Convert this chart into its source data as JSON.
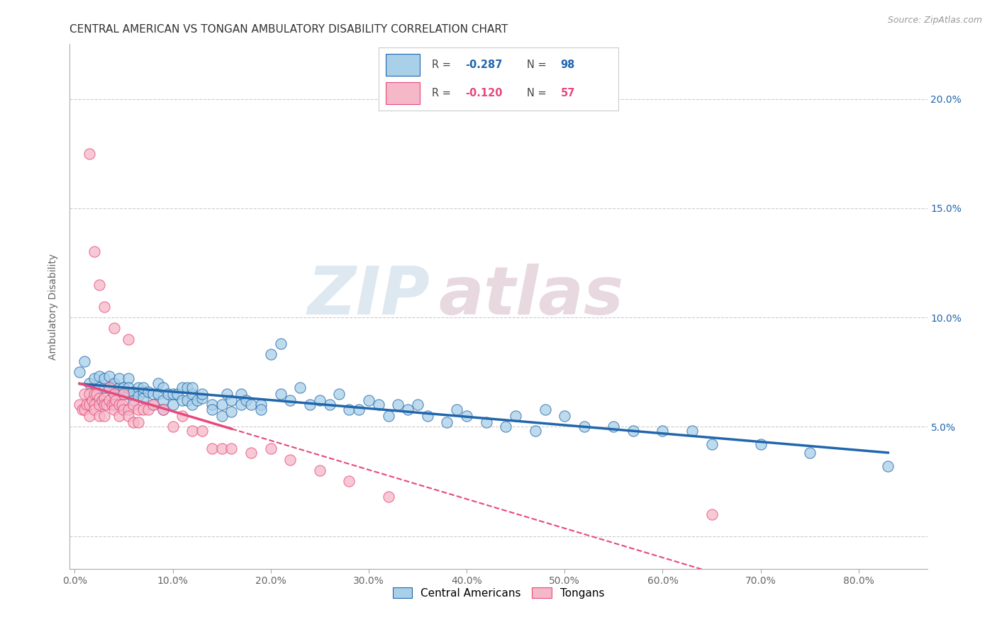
{
  "title": "CENTRAL AMERICAN VS TONGAN AMBULATORY DISABILITY CORRELATION CHART",
  "source": "Source: ZipAtlas.com",
  "ylabel": "Ambulatory Disability",
  "ytick_values": [
    0.0,
    0.05,
    0.1,
    0.15,
    0.2
  ],
  "ytick_labels_right": [
    "",
    "5.0%",
    "10.0%",
    "15.0%",
    "20.0%"
  ],
  "xtick_values": [
    0.0,
    0.1,
    0.2,
    0.3,
    0.4,
    0.5,
    0.6,
    0.7,
    0.8
  ],
  "xlim": [
    -0.005,
    0.87
  ],
  "ylim": [
    -0.015,
    0.225
  ],
  "blue_color": "#a8d0e8",
  "pink_color": "#f5b8c8",
  "blue_line_color": "#2166ac",
  "pink_line_color": "#e8487c",
  "legend_blue_R": "-0.287",
  "legend_blue_N": "98",
  "legend_pink_R": "-0.120",
  "legend_pink_N": "57",
  "watermark_zip": "ZIP",
  "watermark_atlas": "atlas",
  "blue_scatter_x": [
    0.005,
    0.01,
    0.015,
    0.02,
    0.025,
    0.025,
    0.03,
    0.03,
    0.035,
    0.035,
    0.04,
    0.04,
    0.04,
    0.045,
    0.045,
    0.05,
    0.05,
    0.055,
    0.055,
    0.055,
    0.06,
    0.06,
    0.065,
    0.065,
    0.07,
    0.07,
    0.07,
    0.075,
    0.08,
    0.08,
    0.085,
    0.085,
    0.09,
    0.09,
    0.09,
    0.095,
    0.1,
    0.1,
    0.105,
    0.11,
    0.11,
    0.115,
    0.115,
    0.12,
    0.12,
    0.12,
    0.125,
    0.13,
    0.13,
    0.14,
    0.14,
    0.15,
    0.15,
    0.155,
    0.16,
    0.16,
    0.17,
    0.17,
    0.175,
    0.18,
    0.19,
    0.19,
    0.2,
    0.21,
    0.21,
    0.22,
    0.23,
    0.24,
    0.25,
    0.26,
    0.27,
    0.28,
    0.29,
    0.3,
    0.31,
    0.32,
    0.33,
    0.34,
    0.35,
    0.36,
    0.38,
    0.39,
    0.4,
    0.42,
    0.44,
    0.45,
    0.47,
    0.48,
    0.5,
    0.52,
    0.55,
    0.57,
    0.6,
    0.63,
    0.65,
    0.7,
    0.75,
    0.83
  ],
  "blue_scatter_y": [
    0.075,
    0.08,
    0.07,
    0.072,
    0.068,
    0.073,
    0.068,
    0.072,
    0.068,
    0.073,
    0.068,
    0.065,
    0.07,
    0.068,
    0.072,
    0.068,
    0.065,
    0.072,
    0.065,
    0.068,
    0.066,
    0.062,
    0.068,
    0.064,
    0.066,
    0.063,
    0.068,
    0.066,
    0.065,
    0.06,
    0.065,
    0.07,
    0.068,
    0.062,
    0.058,
    0.065,
    0.065,
    0.06,
    0.065,
    0.068,
    0.062,
    0.068,
    0.062,
    0.065,
    0.06,
    0.068,
    0.062,
    0.063,
    0.065,
    0.06,
    0.058,
    0.06,
    0.055,
    0.065,
    0.062,
    0.057,
    0.065,
    0.06,
    0.062,
    0.06,
    0.06,
    0.058,
    0.083,
    0.065,
    0.088,
    0.062,
    0.068,
    0.06,
    0.062,
    0.06,
    0.065,
    0.058,
    0.058,
    0.062,
    0.06,
    0.055,
    0.06,
    0.058,
    0.06,
    0.055,
    0.052,
    0.058,
    0.055,
    0.052,
    0.05,
    0.055,
    0.048,
    0.058,
    0.055,
    0.05,
    0.05,
    0.048,
    0.048,
    0.048,
    0.042,
    0.042,
    0.038,
    0.032
  ],
  "pink_scatter_x": [
    0.005,
    0.008,
    0.01,
    0.01,
    0.012,
    0.015,
    0.015,
    0.015,
    0.018,
    0.02,
    0.02,
    0.02,
    0.022,
    0.025,
    0.025,
    0.025,
    0.028,
    0.03,
    0.03,
    0.03,
    0.032,
    0.035,
    0.035,
    0.038,
    0.04,
    0.04,
    0.04,
    0.042,
    0.045,
    0.045,
    0.048,
    0.05,
    0.05,
    0.055,
    0.055,
    0.06,
    0.06,
    0.065,
    0.065,
    0.07,
    0.075,
    0.08,
    0.09,
    0.1,
    0.11,
    0.12,
    0.13,
    0.14,
    0.15,
    0.16,
    0.18,
    0.2,
    0.22,
    0.25,
    0.28,
    0.32,
    0.65
  ],
  "pink_scatter_y": [
    0.06,
    0.058,
    0.065,
    0.058,
    0.06,
    0.065,
    0.06,
    0.055,
    0.062,
    0.065,
    0.06,
    0.058,
    0.065,
    0.063,
    0.06,
    0.055,
    0.062,
    0.063,
    0.06,
    0.055,
    0.06,
    0.068,
    0.062,
    0.06,
    0.065,
    0.06,
    0.058,
    0.062,
    0.06,
    0.055,
    0.06,
    0.065,
    0.058,
    0.058,
    0.055,
    0.06,
    0.052,
    0.058,
    0.052,
    0.058,
    0.058,
    0.06,
    0.058,
    0.05,
    0.055,
    0.048,
    0.048,
    0.04,
    0.04,
    0.04,
    0.038,
    0.04,
    0.035,
    0.03,
    0.025,
    0.018,
    0.01
  ],
  "pink_outlier_x": [
    0.015,
    0.02,
    0.025,
    0.03,
    0.04,
    0.055
  ],
  "pink_outlier_y": [
    0.175,
    0.13,
    0.115,
    0.105,
    0.095,
    0.09
  ]
}
